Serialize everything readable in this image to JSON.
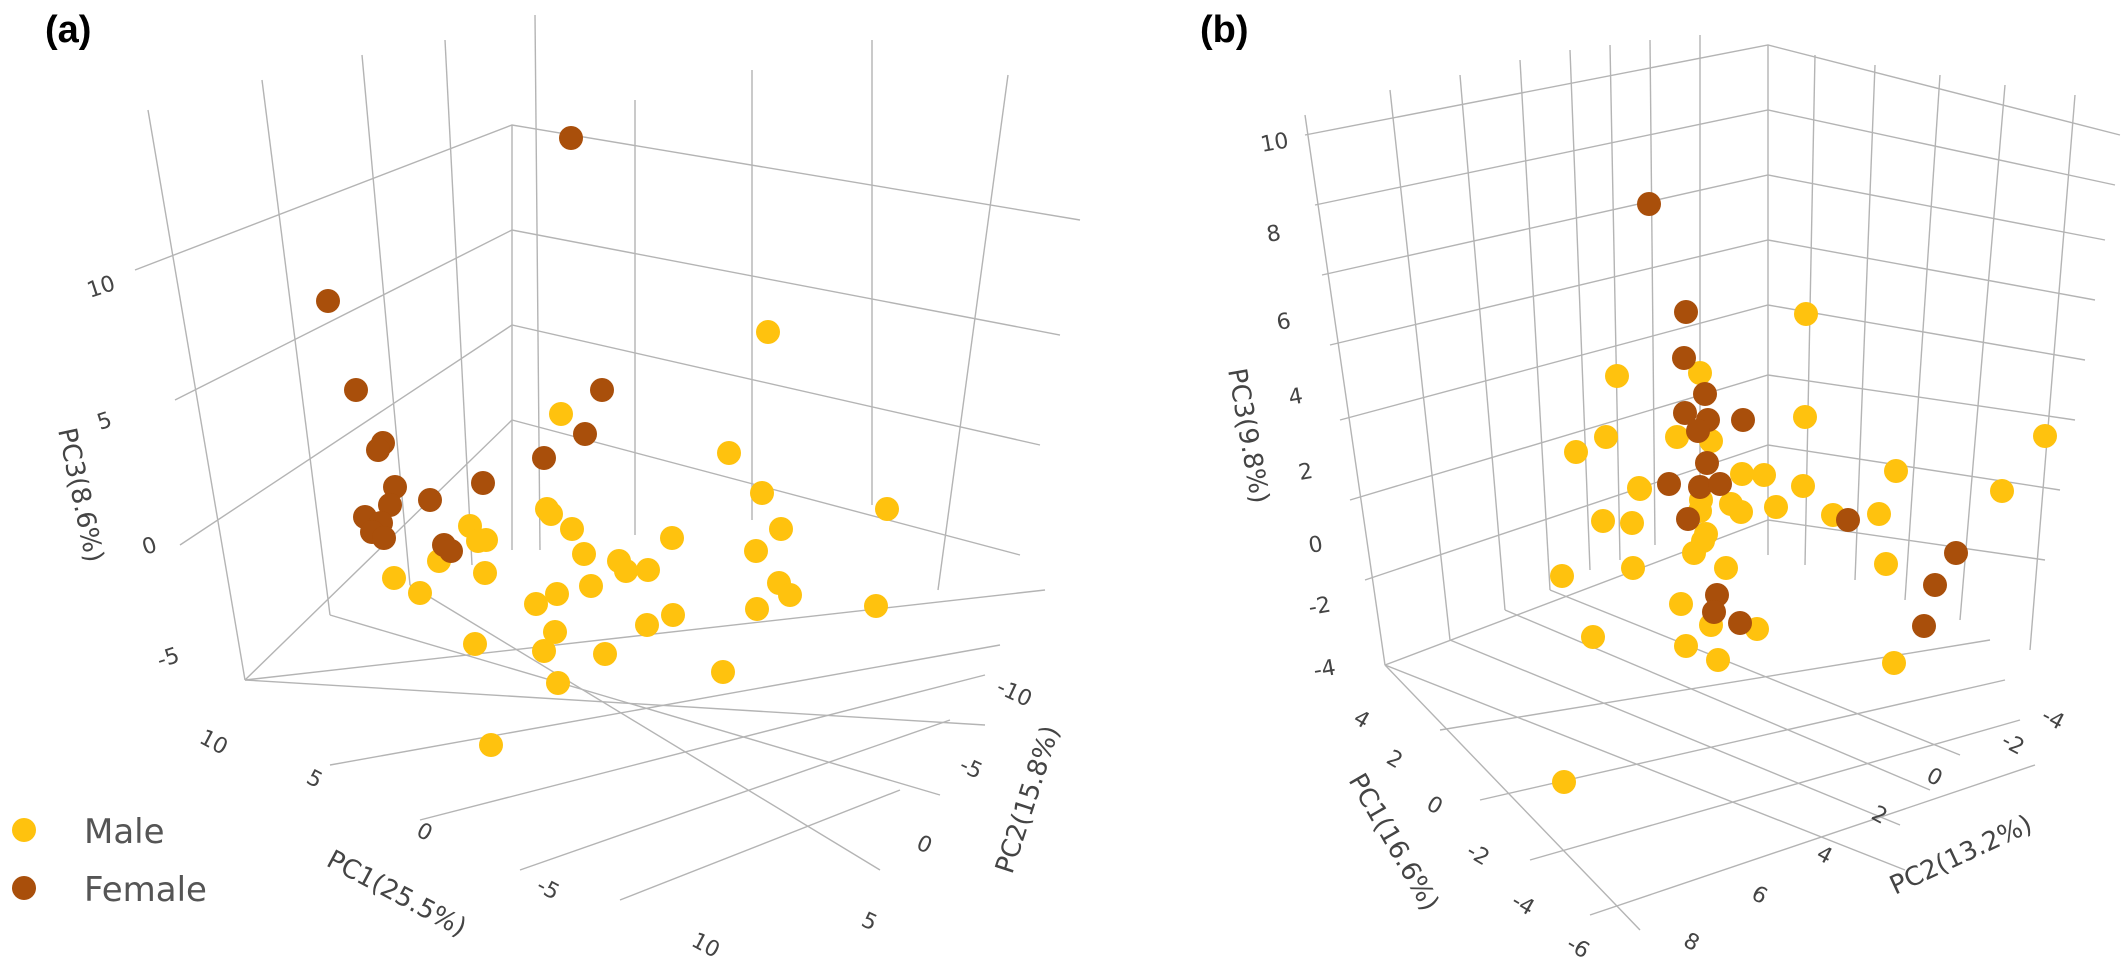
{
  "chart_data": [
    {
      "type": "scatter",
      "panel_label": "(a)",
      "xlabel": "PC1(25.5%)",
      "ylabel": "PC2(15.8%)",
      "zlabel": "PC3(8.6%)",
      "x_ticks": [
        "10",
        "5",
        "0",
        "-5",
        "10"
      ],
      "y_ticks": [
        "-10",
        "-5",
        "0",
        "5"
      ],
      "z_ticks": [
        "10",
        "5",
        "0",
        "-5"
      ],
      "grid": true,
      "legend": {
        "position": "bottom-left"
      },
      "series": [
        {
          "name": "Male",
          "color": "#FFC20E",
          "points": [
            [
              768,
              332
            ],
            [
              561,
              414
            ],
            [
              729,
              453
            ],
            [
              762,
              493
            ],
            [
              887,
              509
            ],
            [
              551,
              514
            ],
            [
              547,
              509
            ],
            [
              756,
              551
            ],
            [
              572,
              529
            ],
            [
              781,
              529
            ],
            [
              470,
              526
            ],
            [
              672,
              538
            ],
            [
              584,
              554
            ],
            [
              619,
              561
            ],
            [
              626,
              571
            ],
            [
              648,
              570
            ],
            [
              486,
              540
            ],
            [
              485,
              573
            ],
            [
              394,
              578
            ],
            [
              439,
              561
            ],
            [
              478,
              541
            ],
            [
              557,
              594
            ],
            [
              591,
              586
            ],
            [
              779,
              583
            ],
            [
              420,
              593
            ],
            [
              790,
              595
            ],
            [
              876,
              606
            ],
            [
              757,
              609
            ],
            [
              647,
              625
            ],
            [
              673,
              615
            ],
            [
              536,
              604
            ],
            [
              544,
              651
            ],
            [
              555,
              632
            ],
            [
              475,
              644
            ],
            [
              605,
              654
            ],
            [
              558,
              683
            ],
            [
              723,
              672
            ],
            [
              491,
              745
            ]
          ]
        },
        {
          "name": "Female",
          "color": "#A94F0B",
          "points": [
            [
              571,
              138
            ],
            [
              328,
              301
            ],
            [
              356,
              390
            ],
            [
              602,
              390
            ],
            [
              383,
              443
            ],
            [
              378,
              450
            ],
            [
              585,
              434
            ],
            [
              544,
              458
            ],
            [
              483,
              483
            ],
            [
              395,
              487
            ],
            [
              430,
              500
            ],
            [
              365,
              517
            ],
            [
              390,
              505
            ],
            [
              381,
              523
            ],
            [
              372,
              532
            ],
            [
              384,
              538
            ],
            [
              444,
              545
            ],
            [
              451,
              551
            ]
          ]
        }
      ]
    },
    {
      "type": "scatter",
      "panel_label": "(b)",
      "xlabel": "PC1(16.6%)",
      "ylabel": "PC2(13.2%)",
      "zlabel": "PC3(9.8%)",
      "x_ticks": [
        "4",
        "2",
        "0",
        "-2",
        "-4",
        "-6"
      ],
      "y_ticks": [
        "-4",
        "-2",
        "0",
        "2",
        "4",
        "6",
        "8"
      ],
      "z_ticks": [
        "10",
        "8",
        "6",
        "4",
        "2",
        "0",
        "-2",
        "-4"
      ],
      "grid": true,
      "series": [
        {
          "name": "Male",
          "color": "#FFC20E",
          "points": [
            [
              1806,
              314
            ],
            [
              1617,
              376
            ],
            [
              1700,
              373
            ],
            [
              1805,
              417
            ],
            [
              1606,
              437
            ],
            [
              1677,
              437
            ],
            [
              1711,
              441
            ],
            [
              1742,
              474
            ],
            [
              1896,
              471
            ],
            [
              1576,
              452
            ],
            [
              1640,
              489
            ],
            [
              1764,
              475
            ],
            [
              1803,
              486
            ],
            [
              1639,
              488
            ],
            [
              1731,
              504
            ],
            [
              1879,
              514
            ],
            [
              1701,
              500
            ],
            [
              1776,
              507
            ],
            [
              1700,
              511
            ],
            [
              1741,
              512
            ],
            [
              1632,
              523
            ],
            [
              1603,
              521
            ],
            [
              1706,
              534
            ],
            [
              1833,
              515
            ],
            [
              1703,
              541
            ],
            [
              1694,
              553
            ],
            [
              1633,
              568
            ],
            [
              1726,
              568
            ],
            [
              1562,
              576
            ],
            [
              1681,
              604
            ],
            [
              1593,
              637
            ],
            [
              1886,
              564
            ],
            [
              1711,
              625
            ],
            [
              1757,
              629
            ],
            [
              1686,
              646
            ],
            [
              1718,
              660
            ],
            [
              1894,
              663
            ],
            [
              1564,
              782
            ],
            [
              2045,
              436
            ],
            [
              2002,
              491
            ]
          ]
        },
        {
          "name": "Female",
          "color": "#A94F0B",
          "points": [
            [
              1649,
              204
            ],
            [
              1686,
              312
            ],
            [
              1684,
              358
            ],
            [
              1705,
              394
            ],
            [
              1685,
              413
            ],
            [
              1708,
              420
            ],
            [
              1743,
              420
            ],
            [
              1698,
              431
            ],
            [
              1707,
              463
            ],
            [
              1669,
              484
            ],
            [
              1700,
              487
            ],
            [
              1720,
              484
            ],
            [
              1848,
              520
            ],
            [
              1688,
              519
            ],
            [
              1956,
              553
            ],
            [
              1935,
              585
            ],
            [
              1717,
              595
            ],
            [
              1714,
              612
            ],
            [
              1740,
              623
            ],
            [
              1924,
              626
            ]
          ]
        }
      ]
    }
  ],
  "legend": {
    "items": [
      {
        "label": "Male",
        "color": "#FFC20E"
      },
      {
        "label": "Female",
        "color": "#A94F0B"
      }
    ]
  }
}
